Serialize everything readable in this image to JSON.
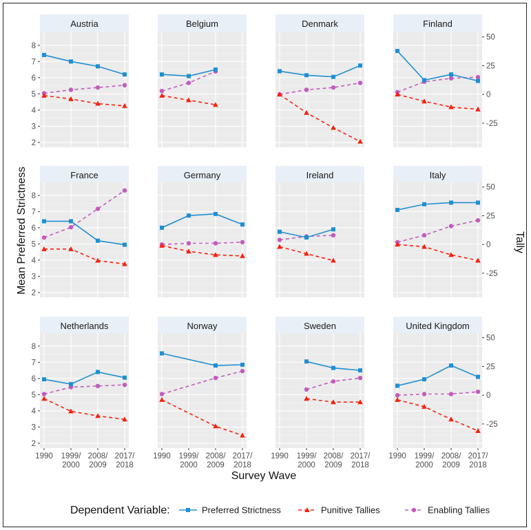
{
  "chart_data": {
    "type": "line",
    "facet_layout": "3 rows x 4 columns",
    "xlabel": "Survey Wave",
    "ylabel_left": "Mean Preferred Strictness",
    "ylabel_right": "Tally",
    "x_categories": [
      [
        "1990"
      ],
      [
        "1999/",
        "2000"
      ],
      [
        "2008/",
        "2009"
      ],
      [
        "2017/",
        "2018"
      ]
    ],
    "ylim_left": [
      1.7,
      8.8
    ],
    "yticks_left": [
      "2",
      "3",
      "4",
      "5",
      "6",
      "7",
      "8"
    ],
    "ylim_right": [
      -46,
      54
    ],
    "yticks_right": [
      "50",
      "25",
      "0",
      "-25"
    ],
    "legend_position": "bottom",
    "legend": {
      "title": "Dependent Variable:",
      "items": [
        {
          "label": "Preferred Strictness",
          "color": "#1f8fd1",
          "marker": "square",
          "dash": "solid"
        },
        {
          "label": "Punitive Tallies",
          "color": "#f4220f",
          "marker": "triangle",
          "dash": "dashed"
        },
        {
          "label": "Enabling Tallies",
          "color": "#c35bbc",
          "marker": "circle",
          "dash": "dashed"
        }
      ]
    },
    "series_colors": {
      "strict": "#1f8fd1",
      "punitive": "#f4220f",
      "enabling": "#c35bbc"
    },
    "panel_strip_color": "#e9eff6",
    "panel_background": "#ebebeb",
    "panels": [
      {
        "country": "Austria",
        "strict": [
          7.4,
          7.0,
          6.7,
          6.2
        ],
        "punitive": [
          -1,
          -4,
          -8,
          -10
        ],
        "enabling": [
          1,
          4,
          6,
          8
        ]
      },
      {
        "country": "Belgium",
        "strict": [
          6.2,
          6.1,
          6.5,
          null
        ],
        "punitive": [
          -1,
          -5,
          -9,
          null
        ],
        "enabling": [
          3,
          10,
          20,
          null
        ]
      },
      {
        "country": "Denmark",
        "strict": [
          6.4,
          6.15,
          6.05,
          6.75
        ],
        "punitive": [
          0,
          -16,
          -29,
          -41
        ],
        "enabling": [
          0,
          4,
          6,
          10
        ]
      },
      {
        "country": "Finland",
        "strict": [
          7.65,
          5.85,
          6.2,
          5.8
        ],
        "punitive": [
          0,
          -6,
          -11,
          -13
        ],
        "enabling": [
          2,
          11,
          14,
          15
        ]
      },
      {
        "country": "France",
        "strict": [
          6.4,
          6.4,
          5.2,
          4.95
        ],
        "punitive": [
          -4,
          -4,
          -14,
          -17
        ],
        "enabling": [
          6,
          15,
          31,
          47
        ]
      },
      {
        "country": "Germany",
        "strict": [
          6.0,
          6.75,
          6.85,
          6.2
        ],
        "punitive": [
          -1,
          -6,
          -9,
          -10
        ],
        "enabling": [
          0,
          1,
          1,
          2
        ]
      },
      {
        "country": "Ireland",
        "strict": [
          5.75,
          5.4,
          5.9,
          null
        ],
        "punitive": [
          -2,
          -8,
          -14,
          null
        ],
        "enabling": [
          4,
          7,
          8,
          null
        ]
      },
      {
        "country": "Italy",
        "strict": [
          7.1,
          7.45,
          7.55,
          7.55
        ],
        "punitive": [
          0,
          -2,
          -9,
          -14
        ],
        "enabling": [
          2,
          8,
          16,
          21
        ]
      },
      {
        "country": "Netherlands",
        "strict": [
          5.95,
          5.65,
          6.4,
          6.05
        ],
        "punitive": [
          -3,
          -14,
          -18,
          -21
        ],
        "enabling": [
          1,
          7,
          8,
          9
        ]
      },
      {
        "country": "Norway",
        "strict": [
          7.55,
          null,
          6.8,
          6.85
        ],
        "punitive": [
          -4,
          null,
          -27,
          -35
        ],
        "enabling": [
          1,
          null,
          15,
          21
        ]
      },
      {
        "country": "Sweden",
        "strict": [
          null,
          7.05,
          6.65,
          6.5
        ],
        "punitive": [
          null,
          -3,
          -6,
          -6
        ],
        "enabling": [
          null,
          5,
          12,
          15
        ]
      },
      {
        "country": "United Kingdom",
        "strict": [
          5.55,
          5.95,
          6.8,
          6.1
        ],
        "punitive": [
          -4,
          -10,
          -21,
          -31
        ],
        "enabling": [
          0,
          1,
          1,
          3
        ]
      }
    ]
  }
}
